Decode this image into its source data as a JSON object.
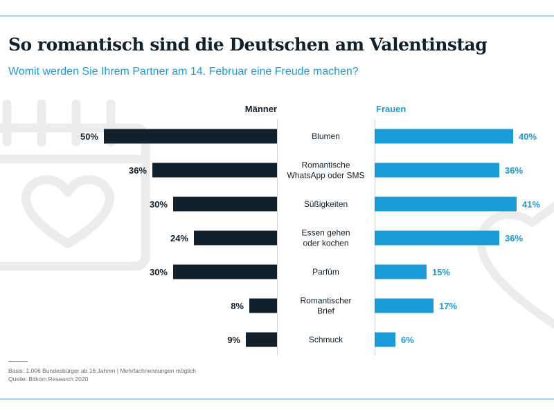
{
  "title": "So romantisch sind die Deutschen am Valentinstag",
  "subtitle": "Womit werden Sie Ihrem Partner am 14. Februar eine Freude machen?",
  "footnote": {
    "basis": "Basis: 1.006 Bundesbürger ab 16 Jahren | Mehrfachnennungen möglich",
    "source": "Quelle: Bitkom Research 2020"
  },
  "colors": {
    "men": "#12202b",
    "women": "#1a9bd7",
    "title": "#12202b",
    "frame": "#9fd3ee",
    "background_icons": "#ececec"
  },
  "chart_data": {
    "type": "bar",
    "orientation": "horizontal",
    "layout": "butterfly",
    "categories": [
      [
        "Blumen"
      ],
      [
        "Romantische",
        "WhatsApp oder SMS"
      ],
      [
        "Süßigkeiten"
      ],
      [
        "Essen gehen",
        "oder kochen"
      ],
      [
        "Parfüm"
      ],
      [
        "Romantischer",
        "Brief"
      ],
      [
        "Schmuck"
      ]
    ],
    "series": [
      {
        "name": "Männer",
        "values": [
          50,
          36,
          30,
          24,
          30,
          8,
          9
        ],
        "color": "#12202b"
      },
      {
        "name": "Frauen",
        "values": [
          40,
          36,
          41,
          36,
          15,
          17,
          6
        ],
        "color": "#1a9bd7"
      }
    ],
    "value_suffix": "%",
    "xlim": [
      0,
      50
    ],
    "grid": false,
    "data_labels": true
  }
}
